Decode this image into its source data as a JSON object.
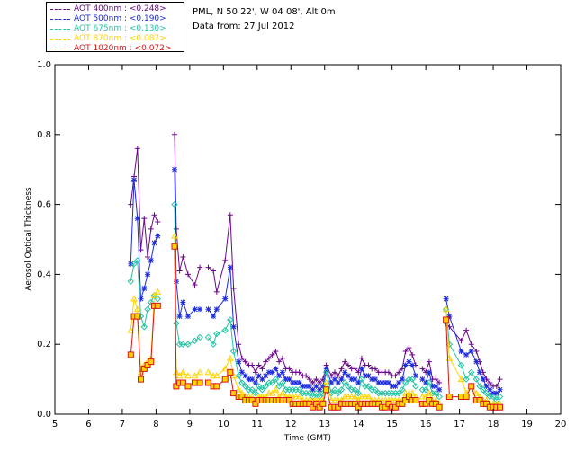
{
  "info": {
    "site": "PML, N 50 22', W 04 08', Alt 0m",
    "date": "Data from: 27 Jul 2012"
  },
  "chart_data": {
    "type": "line",
    "xlabel": "Time (GMT)",
    "ylabel": "Aerosol Optical Thickness",
    "xlim": [
      5,
      20
    ],
    "ylim": [
      0,
      1
    ],
    "xticks": [
      "5",
      "6",
      "7",
      "8",
      "9",
      "10",
      "11",
      "12",
      "13",
      "14",
      "15",
      "16",
      "17",
      "18",
      "19",
      "20"
    ],
    "yticks": [
      "0.0",
      "0.2",
      "0.4",
      "0.6",
      "0.8",
      "1.0"
    ],
    "x": [
      7.25,
      7.35,
      7.45,
      7.55,
      7.65,
      7.75,
      7.85,
      7.95,
      8.05,
      8.15,
      8.55,
      8.6,
      8.7,
      8.8,
      8.95,
      9.15,
      9.3,
      9.4,
      9.55,
      9.7,
      9.8,
      10.05,
      10.2,
      10.3,
      10.45,
      10.55,
      10.65,
      10.75,
      10.85,
      10.95,
      11.05,
      11.15,
      11.25,
      11.35,
      11.45,
      11.55,
      11.65,
      11.75,
      11.85,
      11.95,
      12.05,
      12.15,
      12.25,
      12.35,
      12.45,
      12.55,
      12.65,
      12.75,
      12.85,
      12.95,
      13.05,
      13.2,
      13.3,
      13.4,
      13.5,
      13.6,
      13.7,
      13.8,
      13.9,
      14.0,
      14.1,
      14.2,
      14.3,
      14.4,
      14.5,
      14.6,
      14.7,
      14.8,
      14.9,
      15.0,
      15.1,
      15.2,
      15.3,
      15.4,
      15.5,
      15.6,
      15.7,
      15.8,
      15.9,
      16.0,
      16.1,
      16.2,
      16.3,
      16.4,
      16.5,
      16.6,
      16.7,
      17.05,
      17.2,
      17.35,
      17.5,
      17.6,
      17.7,
      17.8,
      17.9,
      18.0,
      18.1,
      18.2,
      18.3,
      18.4,
      18.5,
      18.55
    ],
    "series": [
      {
        "name": "AOT  400nm : <0.248>",
        "color": "#6a0888",
        "values": [
          0.6,
          0.68,
          0.76,
          0.47,
          0.56,
          0.45,
          0.53,
          0.57,
          0.55,
          null,
          0.8,
          0.53,
          0.41,
          0.45,
          0.4,
          0.37,
          0.42,
          null,
          0.42,
          0.41,
          0.35,
          0.44,
          0.57,
          0.36,
          0.2,
          0.16,
          0.15,
          0.14,
          0.14,
          0.12,
          0.14,
          0.13,
          0.15,
          0.16,
          0.17,
          0.18,
          0.15,
          0.16,
          0.13,
          0.13,
          0.12,
          0.12,
          0.12,
          0.11,
          0.11,
          0.1,
          0.09,
          0.1,
          0.09,
          0.1,
          0.14,
          0.11,
          0.12,
          0.11,
          0.13,
          0.15,
          0.14,
          0.13,
          0.13,
          0.12,
          0.16,
          0.14,
          0.14,
          0.13,
          0.13,
          0.12,
          0.12,
          0.12,
          0.12,
          0.11,
          0.11,
          0.12,
          0.13,
          0.18,
          0.19,
          0.17,
          0.14,
          null,
          0.13,
          0.12,
          0.15,
          0.1,
          0.1,
          0.09,
          null,
          0.26,
          0.25,
          0.21,
          0.24,
          0.2,
          0.18,
          0.15,
          0.12,
          0.1,
          0.09,
          0.08,
          0.08,
          0.1,
          null,
          null,
          null,
          null
        ]
      },
      {
        "name": "AOT  500nm : <0.190>",
        "color": "#1e2bdb",
        "values": [
          0.43,
          0.67,
          0.56,
          0.33,
          0.36,
          0.4,
          0.44,
          0.49,
          0.51,
          null,
          0.7,
          0.38,
          0.28,
          0.32,
          0.28,
          0.3,
          0.3,
          null,
          0.3,
          0.28,
          0.3,
          0.33,
          0.42,
          0.25,
          0.15,
          0.12,
          0.11,
          0.1,
          0.1,
          0.09,
          0.11,
          0.1,
          0.11,
          0.12,
          0.12,
          0.13,
          0.11,
          0.12,
          0.1,
          0.1,
          0.09,
          0.09,
          0.09,
          0.08,
          0.08,
          0.08,
          0.07,
          0.08,
          0.07,
          0.08,
          0.13,
          0.09,
          0.1,
          0.09,
          0.1,
          0.12,
          0.11,
          0.1,
          0.1,
          0.09,
          0.13,
          0.11,
          0.11,
          0.1,
          0.1,
          0.09,
          0.09,
          0.09,
          0.09,
          0.08,
          0.08,
          0.09,
          0.1,
          0.14,
          0.15,
          0.14,
          0.11,
          null,
          0.1,
          0.09,
          0.12,
          0.08,
          0.08,
          0.07,
          null,
          0.33,
          0.28,
          0.18,
          0.17,
          0.18,
          0.15,
          0.12,
          0.1,
          0.08,
          0.07,
          0.06,
          0.06,
          0.07,
          null,
          null,
          null,
          null
        ]
      },
      {
        "name": "AOT  675nm : <0.130>",
        "color": "#22c4a4",
        "values": [
          0.38,
          0.43,
          0.44,
          0.28,
          0.25,
          0.3,
          0.32,
          0.34,
          0.33,
          null,
          0.6,
          0.26,
          0.2,
          0.2,
          0.2,
          0.21,
          0.22,
          null,
          0.22,
          0.2,
          0.23,
          0.24,
          0.27,
          0.18,
          0.11,
          0.09,
          0.08,
          0.07,
          0.07,
          0.06,
          0.08,
          0.07,
          0.08,
          0.09,
          0.09,
          0.1,
          0.08,
          0.09,
          0.07,
          0.07,
          0.07,
          0.07,
          0.07,
          0.06,
          0.06,
          0.06,
          0.05,
          0.06,
          0.05,
          0.06,
          0.12,
          0.06,
          0.07,
          0.06,
          0.07,
          0.09,
          0.08,
          0.07,
          0.07,
          0.06,
          0.1,
          0.08,
          0.08,
          0.07,
          0.07,
          0.06,
          0.06,
          0.06,
          0.06,
          0.06,
          0.06,
          0.06,
          0.07,
          0.09,
          0.1,
          0.1,
          0.08,
          null,
          0.07,
          0.07,
          0.09,
          0.06,
          0.06,
          0.05,
          null,
          0.3,
          0.2,
          0.14,
          0.1,
          0.12,
          0.1,
          0.08,
          0.07,
          0.06,
          0.05,
          0.05,
          0.04,
          0.05,
          null,
          null,
          null,
          null
        ]
      },
      {
        "name": "AOT  870nm : <0.087>",
        "color": "#ffd300",
        "values": [
          0.24,
          0.33,
          0.3,
          0.12,
          0.14,
          0.15,
          0.16,
          0.34,
          0.35,
          null,
          0.51,
          0.12,
          0.11,
          0.12,
          0.11,
          0.11,
          0.12,
          null,
          0.12,
          0.11,
          0.11,
          0.13,
          0.16,
          0.11,
          0.07,
          0.06,
          0.05,
          0.05,
          0.05,
          0.04,
          0.05,
          0.05,
          0.05,
          0.06,
          0.06,
          0.07,
          0.05,
          0.06,
          0.05,
          0.05,
          0.05,
          0.05,
          0.05,
          0.04,
          0.04,
          0.04,
          0.04,
          0.04,
          0.04,
          0.04,
          0.09,
          0.04,
          0.04,
          0.04,
          0.04,
          0.05,
          0.05,
          0.05,
          0.05,
          0.04,
          0.05,
          0.05,
          0.05,
          0.04,
          0.04,
          0.04,
          0.04,
          0.04,
          0.04,
          0.04,
          0.04,
          0.04,
          0.04,
          0.06,
          0.06,
          0.06,
          0.05,
          null,
          0.05,
          0.05,
          0.06,
          0.04,
          0.04,
          0.03,
          null,
          0.3,
          0.16,
          0.1,
          0.06,
          0.08,
          0.06,
          0.05,
          0.04,
          0.04,
          0.03,
          0.03,
          0.03,
          0.03,
          null,
          null,
          null,
          null
        ]
      },
      {
        "name": "AOT 1020nm : <0.072>",
        "color": "#d71616",
        "values": [
          0.17,
          0.28,
          0.28,
          0.1,
          0.13,
          0.14,
          0.15,
          0.31,
          0.31,
          null,
          0.48,
          0.08,
          0.09,
          0.09,
          0.08,
          0.09,
          0.09,
          null,
          0.09,
          0.08,
          0.08,
          0.1,
          0.12,
          0.06,
          0.05,
          0.05,
          0.04,
          0.04,
          0.04,
          0.03,
          0.04,
          0.04,
          0.04,
          0.04,
          0.04,
          0.04,
          0.04,
          0.04,
          0.04,
          0.04,
          0.03,
          0.03,
          0.03,
          0.03,
          0.03,
          0.03,
          0.02,
          0.03,
          0.02,
          0.03,
          0.07,
          0.02,
          0.02,
          0.02,
          0.03,
          0.03,
          0.03,
          0.03,
          0.03,
          0.02,
          0.03,
          0.03,
          0.03,
          0.03,
          0.03,
          0.03,
          0.02,
          0.02,
          0.03,
          0.02,
          0.02,
          0.03,
          0.03,
          0.04,
          0.05,
          0.04,
          0.04,
          null,
          0.03,
          0.03,
          0.04,
          0.03,
          0.03,
          0.02,
          null,
          0.27,
          0.05,
          0.05,
          0.05,
          0.08,
          0.04,
          0.04,
          0.03,
          0.03,
          0.02,
          0.02,
          0.02,
          0.02,
          null,
          null,
          null,
          null
        ]
      }
    ]
  }
}
